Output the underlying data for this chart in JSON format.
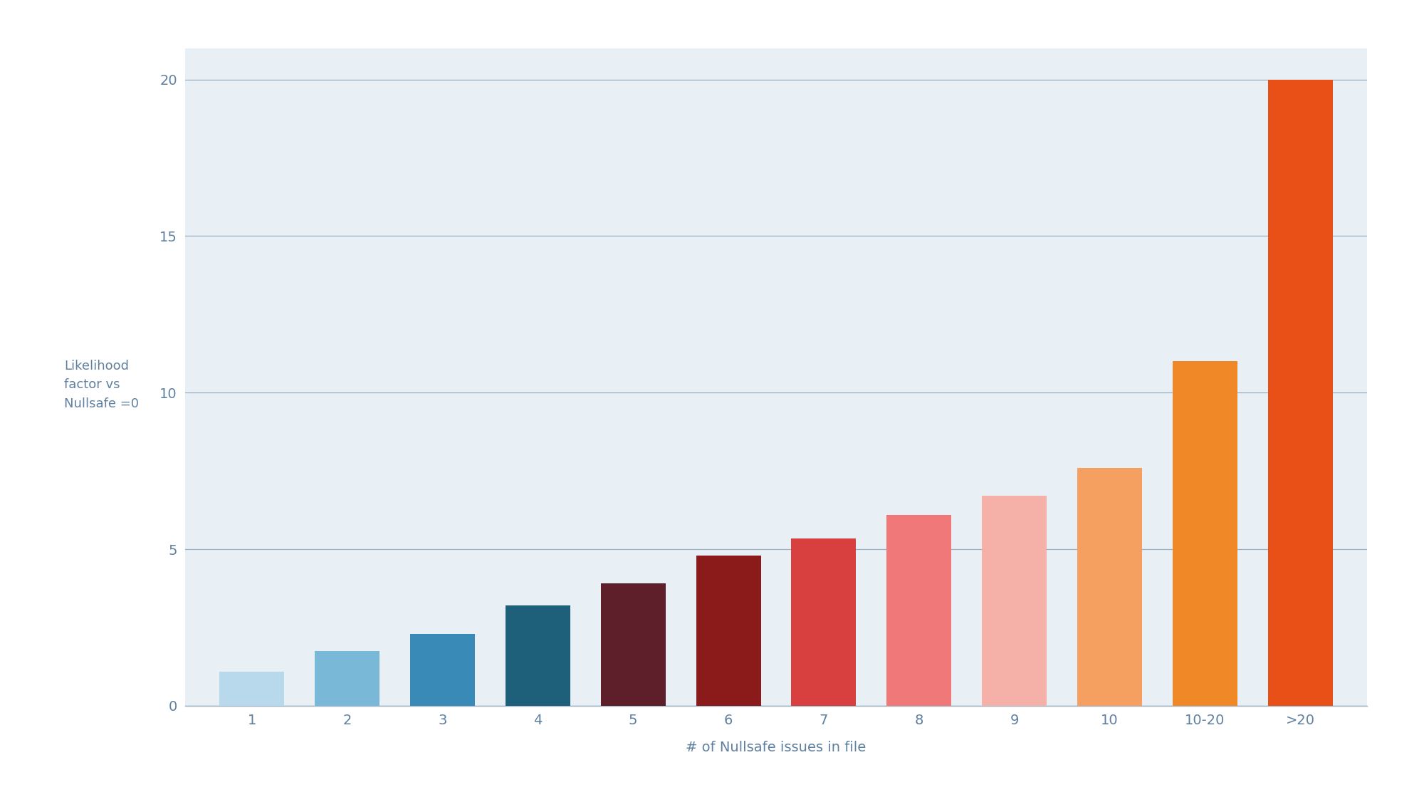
{
  "categories": [
    "1",
    "2",
    "3",
    "4",
    "5",
    "6",
    "7",
    "8",
    "9",
    "10",
    "10-20",
    ">20"
  ],
  "values": [
    1.1,
    1.75,
    2.3,
    3.2,
    3.9,
    4.8,
    5.35,
    6.1,
    6.7,
    7.6,
    11.0,
    20.0
  ],
  "bar_colors": [
    "#b8d8ec",
    "#7ab8d8",
    "#3a8ab8",
    "#1e5f7a",
    "#5e1e2a",
    "#8b1a1a",
    "#d84040",
    "#f07878",
    "#f5b0a8",
    "#f5a060",
    "#f08828",
    "#e85018"
  ],
  "xlabel": "# of Nullsafe issues in file",
  "ylabel": "Likelihood\nfactor vs\nNullsafe =0",
  "ylim": [
    0,
    21
  ],
  "yticks": [
    0,
    5,
    10,
    15,
    20
  ],
  "outer_bg": "#ffffff",
  "plot_bg_color": "#e8eff5",
  "grid_color": "#9ab0c0",
  "axis_label_color": "#6080a0",
  "tick_label_color": "#6080a0",
  "bar_width": 0.68,
  "label_fontsize": 14,
  "tick_fontsize": 14,
  "ylabel_fontsize": 13
}
